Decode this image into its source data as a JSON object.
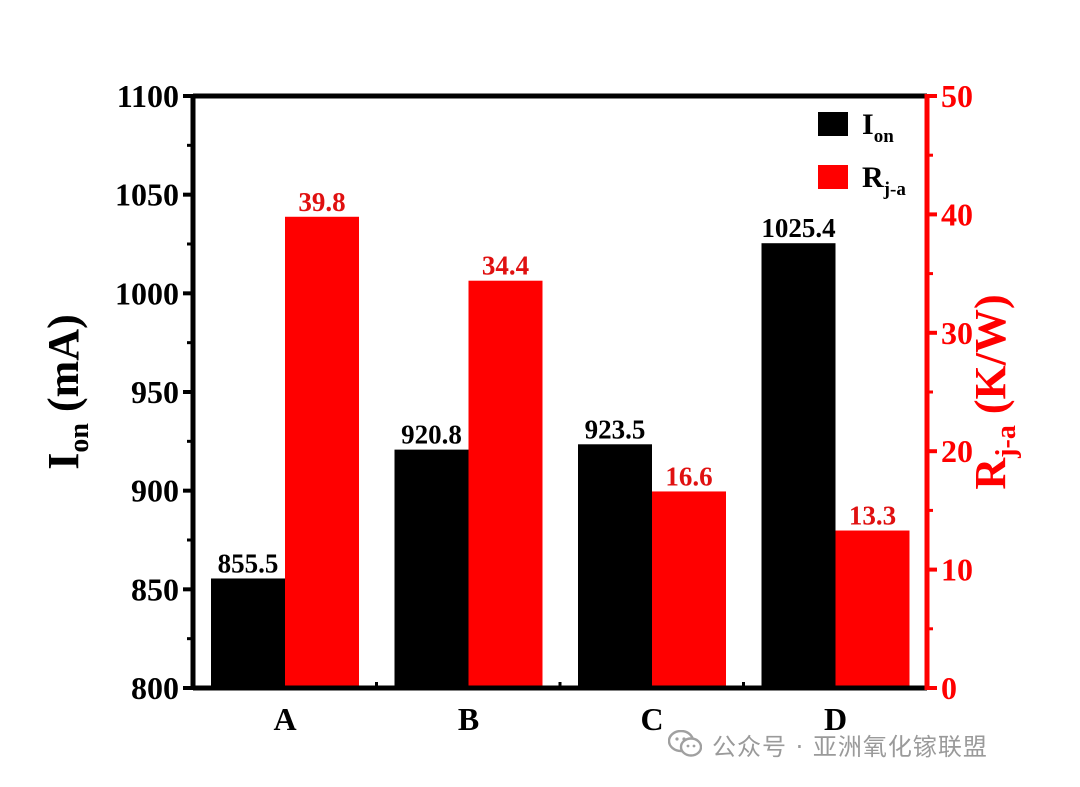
{
  "chart_data": {
    "type": "bar",
    "categories": [
      "A",
      "B",
      "C",
      "D"
    ],
    "series": [
      {
        "name": "I_on",
        "axis": "left",
        "color": "#000000",
        "values": [
          855.5,
          920.8,
          923.5,
          1025.4
        ],
        "labels": [
          "855.5",
          "920.8",
          "923.5",
          "1025.4"
        ]
      },
      {
        "name": "R_j-a",
        "axis": "right",
        "color": "#ff0000",
        "values": [
          39.8,
          34.4,
          16.6,
          13.3
        ],
        "labels": [
          "39.8",
          "34.4",
          "16.6",
          "13.3"
        ]
      }
    ],
    "left_axis": {
      "label_main": "I",
      "label_sub": "on",
      "label_rest": " (mA)",
      "ylim": [
        800,
        1100
      ],
      "ticks": [
        "800",
        "850",
        "900",
        "950",
        "1000",
        "1050",
        "1100"
      ]
    },
    "right_axis": {
      "label_main": "R",
      "label_sub": "j-a",
      "label_rest": " (K/W)",
      "ylim": [
        0,
        50
      ],
      "color": "#ff0000",
      "ticks": [
        "0",
        "10",
        "20",
        "30",
        "40",
        "50"
      ]
    },
    "legend": {
      "position": "top-right",
      "items": [
        {
          "main": "I",
          "sub": "on",
          "color": "#000000"
        },
        {
          "main": "R",
          "sub": "j-a",
          "color": "#ff0000"
        }
      ]
    }
  },
  "watermark": {
    "text": "公众号 · 亚洲氧化镓联盟",
    "icon": "wechat-icon"
  }
}
